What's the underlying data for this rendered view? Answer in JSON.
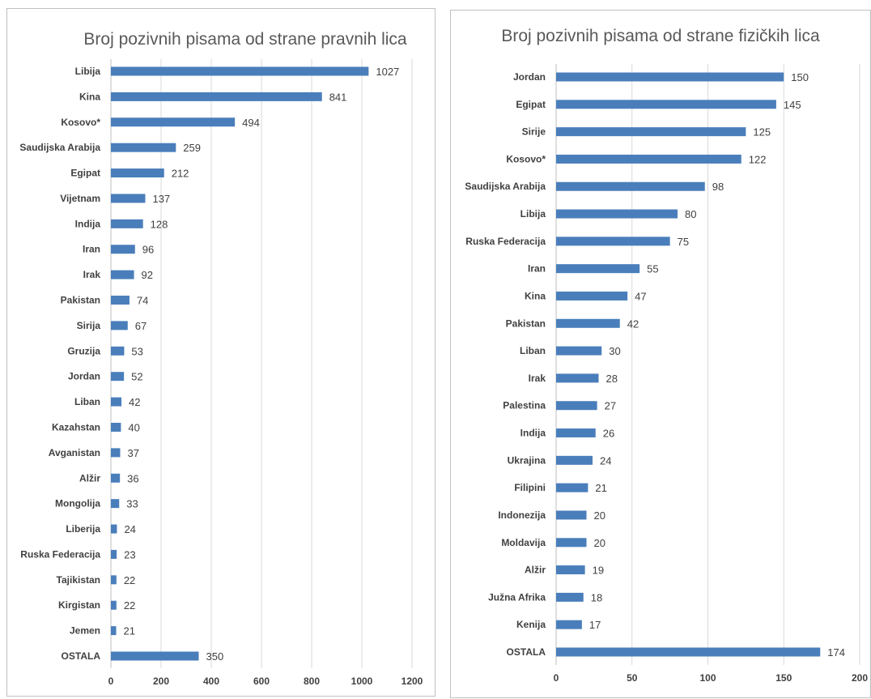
{
  "colors": {
    "bar": "#4a7ebb",
    "grid": "#d9d9d9",
    "axis": "#bfbfbf",
    "text": "#404040",
    "title": "#595959"
  },
  "chart_data": [
    {
      "type": "bar",
      "orientation": "horizontal",
      "title": "Broj pozivnih pisama od strane pravnih lica",
      "xlabel": "",
      "ylabel": "",
      "xlim": [
        0,
        1200
      ],
      "ticks": [
        "0",
        "200",
        "400",
        "600",
        "800",
        "1000",
        "1200"
      ],
      "grid": true,
      "categories": [
        "Libija",
        "Kina",
        "Kosovo*",
        "Saudijska Arabija",
        "Egipat",
        "Vijetnam",
        "Indija",
        "Iran",
        "Irak",
        "Pakistan",
        "Sirija",
        "Gruzija",
        "Jordan",
        "Liban",
        "Kazahstan",
        "Avganistan",
        "Alžir",
        "Mongolija",
        "Liberija",
        "Ruska Federacija",
        "Tajikistan",
        "Kirgistan",
        "Jemen",
        "OSTALA"
      ],
      "values": [
        1027,
        841,
        494,
        259,
        212,
        137,
        128,
        96,
        92,
        74,
        67,
        53,
        52,
        42,
        40,
        37,
        36,
        33,
        24,
        23,
        22,
        22,
        21,
        350
      ]
    },
    {
      "type": "bar",
      "orientation": "horizontal",
      "title": "Broj pozivnih pisama od strane fizičkih lica",
      "xlabel": "",
      "ylabel": "",
      "xlim": [
        0,
        200
      ],
      "ticks": [
        "0",
        "50",
        "100",
        "150",
        "200"
      ],
      "grid": true,
      "categories": [
        "Jordan",
        "Egipat",
        "Sirije",
        "Kosovo*",
        "Saudijska Arabija",
        "Libija",
        "Ruska Federacija",
        "Iran",
        "Kina",
        "Pakistan",
        "Liban",
        "Irak",
        "Palestina",
        "Indija",
        "Ukrajina",
        "Filipini",
        "Indonezija",
        "Moldavija",
        "Alžir",
        "Južna Afrika",
        "Kenija",
        "OSTALA"
      ],
      "values": [
        150,
        145,
        125,
        122,
        98,
        80,
        75,
        55,
        47,
        42,
        30,
        28,
        27,
        26,
        24,
        21,
        20,
        20,
        19,
        18,
        17,
        174
      ]
    }
  ]
}
